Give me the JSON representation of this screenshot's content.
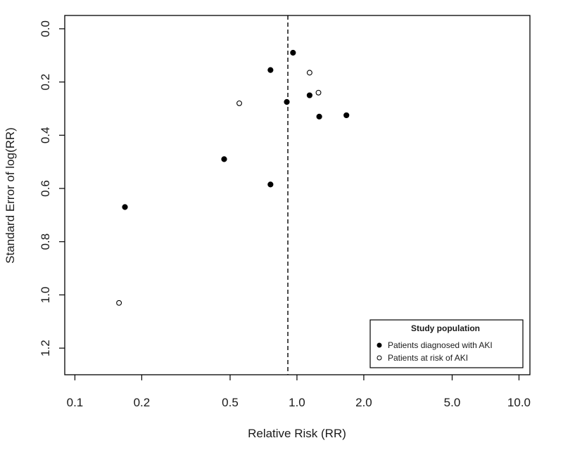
{
  "chart_data": {
    "type": "scatter",
    "title": "",
    "xlabel": "Relative Risk (RR)",
    "ylabel": "Standard Error of log(RR)",
    "x_scale": "log",
    "xlim": [
      0.09,
      11.2
    ],
    "ylim": [
      1.3,
      -0.05
    ],
    "y_reversed": true,
    "x_ticks": [
      0.1,
      0.2,
      0.5,
      1.0,
      2.0,
      5.0,
      10.0
    ],
    "x_tick_labels": [
      "0.1",
      "0.2",
      "0.5",
      "1.0",
      "2.0",
      "5.0",
      "10.0"
    ],
    "y_ticks": [
      0.0,
      0.2,
      0.4,
      0.6,
      0.8,
      1.0,
      1.2
    ],
    "y_tick_labels": [
      "0.0",
      "0.2",
      "0.4",
      "0.6",
      "0.8",
      "1.0",
      "1.2"
    ],
    "reference_line": {
      "x": 0.91,
      "style": "dashed"
    },
    "grid": false,
    "legend": {
      "position": "bottom-right",
      "title": "Study population"
    },
    "series": [
      {
        "name": "Patients diagnosed with AKI",
        "marker": "filled-circle",
        "color": "#000000",
        "points": [
          {
            "x": 0.96,
            "y": 0.09
          },
          {
            "x": 0.76,
            "y": 0.155
          },
          {
            "x": 1.14,
            "y": 0.25
          },
          {
            "x": 0.9,
            "y": 0.275
          },
          {
            "x": 1.26,
            "y": 0.33
          },
          {
            "x": 1.67,
            "y": 0.325
          },
          {
            "x": 0.47,
            "y": 0.49
          },
          {
            "x": 0.76,
            "y": 0.585
          },
          {
            "x": 0.168,
            "y": 0.67
          }
        ]
      },
      {
        "name": "Patients at risk of AKI",
        "marker": "open-circle",
        "color": "#000000",
        "points": [
          {
            "x": 1.14,
            "y": 0.165
          },
          {
            "x": 1.25,
            "y": 0.24
          },
          {
            "x": 0.55,
            "y": 0.28
          },
          {
            "x": 0.158,
            "y": 1.03
          }
        ]
      }
    ]
  }
}
